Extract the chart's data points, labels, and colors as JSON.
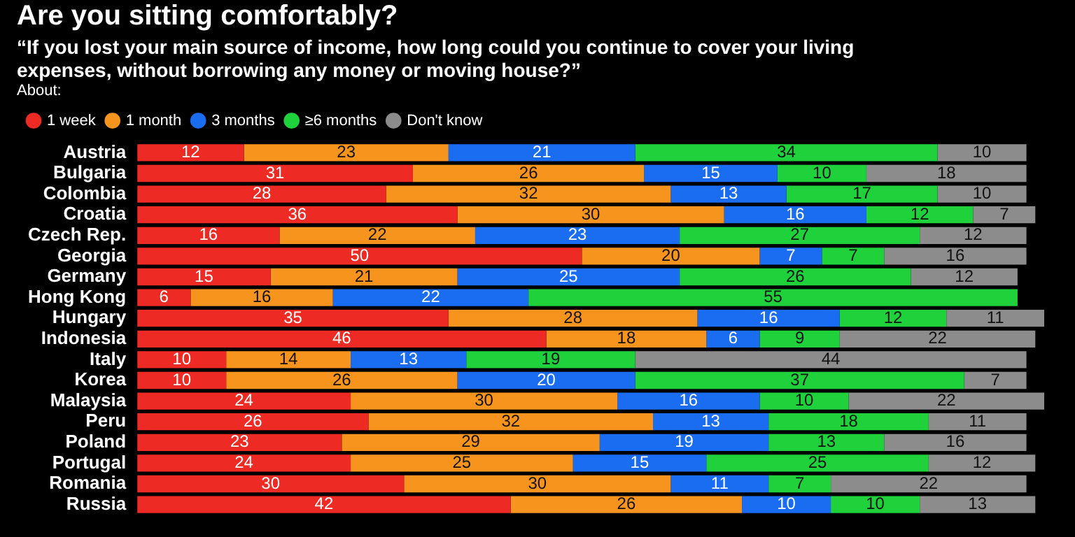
{
  "chart_data": {
    "type": "bar",
    "orientation": "horizontal",
    "stacked": true,
    "title": "Are you sitting comfortably?",
    "subtitle": "“If you lost your main source of income, how long could you continue to cover your living expenses, without borrowing any money or moving house?”",
    "legend_title": "About:",
    "legend": "top left",
    "tick_labels": "y",
    "data_labels": true,
    "xlim": [
      0,
      102
    ],
    "categories": [
      "Austria",
      "Bulgaria",
      "Colombia",
      "Croatia",
      "Czech Rep.",
      "Georgia",
      "Germany",
      "Hong Kong",
      "Hungary",
      "Indonesia",
      "Italy",
      "Korea",
      "Malaysia",
      "Peru",
      "Poland",
      "Portugal",
      "Romania",
      "Russia"
    ],
    "series": [
      {
        "name": "1 week",
        "color": "#ee2a24",
        "values": [
          12,
          31,
          28,
          36,
          16,
          50,
          15,
          6,
          35,
          46,
          10,
          10,
          24,
          26,
          23,
          24,
          30,
          42
        ]
      },
      {
        "name": "1 month",
        "color": "#f7941d",
        "values": [
          23,
          26,
          32,
          30,
          22,
          20,
          21,
          16,
          28,
          18,
          14,
          26,
          30,
          32,
          29,
          25,
          30,
          26
        ]
      },
      {
        "name": "3 months",
        "color": "#1a6cf0",
        "values": [
          21,
          15,
          13,
          16,
          23,
          7,
          25,
          22,
          16,
          6,
          13,
          20,
          16,
          13,
          19,
          15,
          11,
          10
        ]
      },
      {
        "name": "≥6 months",
        "color": "#1fd23c",
        "values": [
          34,
          10,
          17,
          12,
          27,
          7,
          26,
          55,
          12,
          9,
          19,
          37,
          10,
          18,
          13,
          25,
          7,
          10
        ]
      },
      {
        "name": "Don't know",
        "color": "#8c8c8c",
        "values": [
          10,
          18,
          10,
          7,
          12,
          16,
          12,
          null,
          11,
          22,
          44,
          7,
          22,
          11,
          16,
          12,
          22,
          13
        ]
      }
    ]
  }
}
